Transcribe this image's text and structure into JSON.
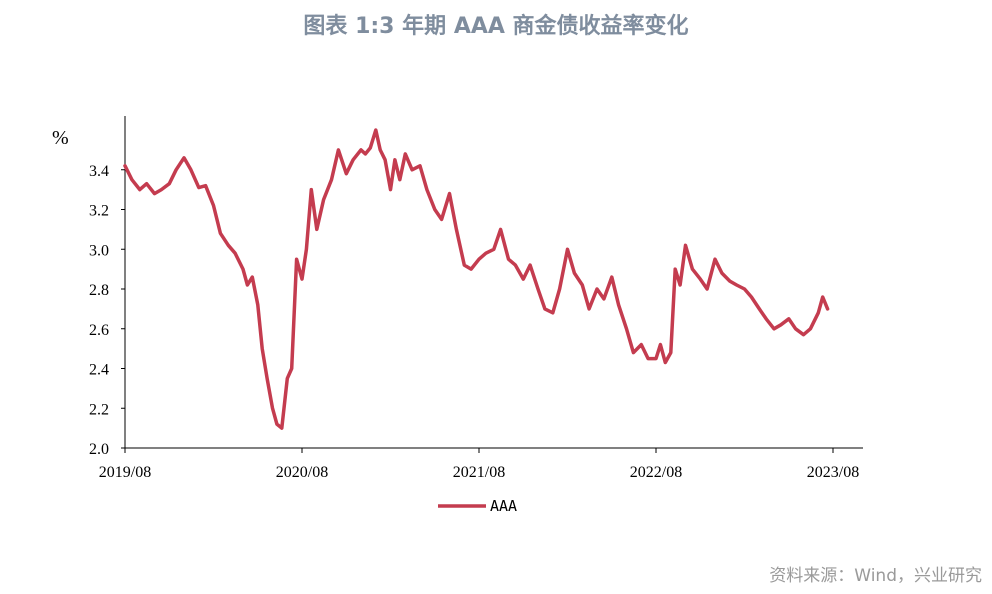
{
  "title": "图表 1:3 年期 AAA 商金债收益率变化",
  "source": "资料来源：Wind，兴业研究",
  "colors": {
    "series": "#c43c4f",
    "title": "#7f8d9e",
    "source": "#9a9a9a",
    "axis": "#000000"
  },
  "chart_data": {
    "type": "line",
    "ylabel": "%",
    "ylim": [
      2.0,
      3.6
    ],
    "yticks": [
      "2.0",
      "2.2",
      "2.4",
      "2.6",
      "2.8",
      "3.0",
      "3.2",
      "3.4"
    ],
    "xlim": [
      "2019-08",
      "2023-10"
    ],
    "xticks": [
      "2019/08",
      "2020/08",
      "2021/08",
      "2022/08",
      "2023/08"
    ],
    "grid": false,
    "legend": "bottom-center",
    "series": [
      {
        "name": "AAA",
        "color": "#c43c4f",
        "points": [
          [
            "2019-08",
            3.42
          ],
          [
            "2019-08-15",
            3.35
          ],
          [
            "2019-09",
            3.3
          ],
          [
            "2019-09-15",
            3.33
          ],
          [
            "2019-10",
            3.28
          ],
          [
            "2019-10-15",
            3.3
          ],
          [
            "2019-11",
            3.33
          ],
          [
            "2019-11-15",
            3.4
          ],
          [
            "2019-12",
            3.46
          ],
          [
            "2019-12-15",
            3.4
          ],
          [
            "2020-01",
            3.31
          ],
          [
            "2020-01-15",
            3.32
          ],
          [
            "2020-02",
            3.22
          ],
          [
            "2020-02-15",
            3.08
          ],
          [
            "2020-03",
            3.02
          ],
          [
            "2020-03-15",
            2.98
          ],
          [
            "2020-04",
            2.9
          ],
          [
            "2020-04-10",
            2.82
          ],
          [
            "2020-04-20",
            2.86
          ],
          [
            "2020-05",
            2.72
          ],
          [
            "2020-05-10",
            2.5
          ],
          [
            "2020-05-20",
            2.35
          ],
          [
            "2020-06",
            2.2
          ],
          [
            "2020-06-10",
            2.12
          ],
          [
            "2020-06-20",
            2.1
          ],
          [
            "2020-07",
            2.35
          ],
          [
            "2020-07-10",
            2.4
          ],
          [
            "2020-07-20",
            2.95
          ],
          [
            "2020-08",
            2.85
          ],
          [
            "2020-08-10",
            3.0
          ],
          [
            "2020-08-20",
            3.3
          ],
          [
            "2020-09",
            3.1
          ],
          [
            "2020-09-15",
            3.25
          ],
          [
            "2020-10",
            3.35
          ],
          [
            "2020-10-15",
            3.5
          ],
          [
            "2020-11",
            3.38
          ],
          [
            "2020-11-15",
            3.45
          ],
          [
            "2020-12",
            3.5
          ],
          [
            "2020-12-10",
            3.48
          ],
          [
            "2020-12-20",
            3.51
          ],
          [
            "2021-01",
            3.6
          ],
          [
            "2021-01-10",
            3.5
          ],
          [
            "2021-01-20",
            3.45
          ],
          [
            "2021-02",
            3.3
          ],
          [
            "2021-02-10",
            3.45
          ],
          [
            "2021-02-20",
            3.35
          ],
          [
            "2021-03",
            3.48
          ],
          [
            "2021-03-15",
            3.4
          ],
          [
            "2021-04",
            3.42
          ],
          [
            "2021-04-15",
            3.3
          ],
          [
            "2021-05",
            3.2
          ],
          [
            "2021-05-15",
            3.15
          ],
          [
            "2021-06",
            3.28
          ],
          [
            "2021-06-15",
            3.1
          ],
          [
            "2021-07",
            2.92
          ],
          [
            "2021-07-15",
            2.9
          ],
          [
            "2021-08",
            2.95
          ],
          [
            "2021-08-15",
            2.98
          ],
          [
            "2021-09",
            3.0
          ],
          [
            "2021-09-15",
            3.1
          ],
          [
            "2021-10",
            2.95
          ],
          [
            "2021-10-15",
            2.92
          ],
          [
            "2021-11",
            2.85
          ],
          [
            "2021-11-15",
            2.92
          ],
          [
            "2021-12",
            2.8
          ],
          [
            "2021-12-15",
            2.7
          ],
          [
            "2022-01",
            2.68
          ],
          [
            "2022-01-15",
            2.8
          ],
          [
            "2022-02",
            3.0
          ],
          [
            "2022-02-15",
            2.88
          ],
          [
            "2022-03",
            2.82
          ],
          [
            "2022-03-15",
            2.7
          ],
          [
            "2022-04",
            2.8
          ],
          [
            "2022-04-15",
            2.75
          ],
          [
            "2022-05",
            2.86
          ],
          [
            "2022-05-15",
            2.72
          ],
          [
            "2022-06",
            2.6
          ],
          [
            "2022-06-15",
            2.48
          ],
          [
            "2022-07",
            2.52
          ],
          [
            "2022-07-15",
            2.45
          ],
          [
            "2022-08",
            2.45
          ],
          [
            "2022-08-10",
            2.52
          ],
          [
            "2022-08-20",
            2.43
          ],
          [
            "2022-09",
            2.48
          ],
          [
            "2022-09-10",
            2.9
          ],
          [
            "2022-09-20",
            2.82
          ],
          [
            "2022-10",
            3.02
          ],
          [
            "2022-10-15",
            2.9
          ],
          [
            "2022-11",
            2.85
          ],
          [
            "2022-11-15",
            2.8
          ],
          [
            "2022-12",
            2.95
          ],
          [
            "2022-12-15",
            2.88
          ],
          [
            "2023-01",
            2.84
          ],
          [
            "2023-01-15",
            2.82
          ],
          [
            "2023-02",
            2.8
          ],
          [
            "2023-02-15",
            2.76
          ],
          [
            "2023-03",
            2.7
          ],
          [
            "2023-03-15",
            2.65
          ],
          [
            "2023-04",
            2.6
          ],
          [
            "2023-04-15",
            2.62
          ],
          [
            "2023-05",
            2.65
          ],
          [
            "2023-05-15",
            2.6
          ],
          [
            "2023-06",
            2.57
          ],
          [
            "2023-06-15",
            2.6
          ],
          [
            "2023-07",
            2.68
          ],
          [
            "2023-07-10",
            2.76
          ],
          [
            "2023-07-20",
            2.7
          ]
        ]
      }
    ]
  }
}
